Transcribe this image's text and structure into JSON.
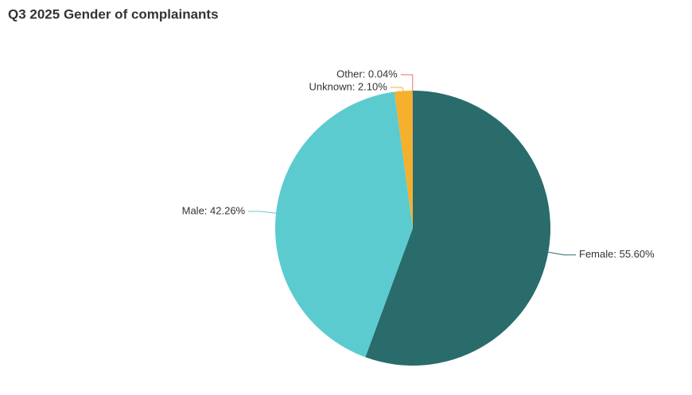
{
  "chart_data": {
    "type": "pie",
    "title": "Q3 2025 Gender of complainants",
    "values": [
      55.6,
      42.26,
      2.1,
      0.04
    ],
    "value_labels": [
      "Female: 55.60%",
      "Male: 42.26%",
      "Unknown: 2.10%",
      "Other: 0.04%"
    ],
    "colors": [
      "#2a6b6b",
      "#5ccbd0",
      "#f5b02e",
      "#e8735a"
    ]
  }
}
